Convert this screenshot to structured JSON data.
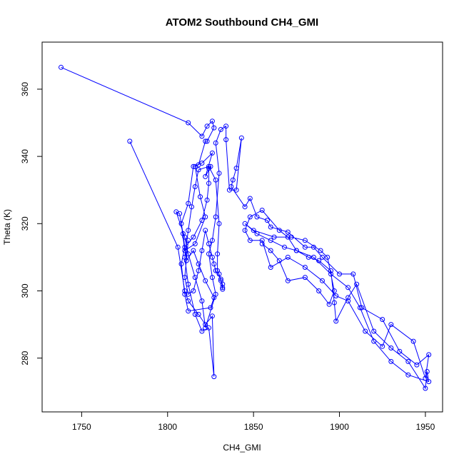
{
  "chart_data": {
    "type": "line",
    "title": "ATOM2 Southbound CH4_GMI",
    "xlabel": "CH4_GMI",
    "ylabel": "Theta (K)",
    "xlim": [
      1727,
      1960
    ],
    "ylim": [
      264,
      374
    ],
    "xticks": [
      1750,
      1800,
      1850,
      1900,
      1950
    ],
    "yticks": [
      280,
      300,
      320,
      340,
      360
    ],
    "grid": false,
    "legend": "none",
    "markers": "open-circle",
    "color": "#0000ff",
    "series": [
      {
        "points": [
          [
            1738,
            366.5
          ],
          [
            1812,
            350
          ],
          [
            1820,
            346
          ],
          [
            1823,
            349
          ],
          [
            1826,
            350.5
          ],
          [
            1827,
            348.5
          ],
          [
            1823,
            344.5
          ],
          [
            1822,
            344.5
          ],
          [
            1818,
            337.5
          ],
          [
            1816,
            337
          ],
          [
            1819,
            328
          ],
          [
            1822,
            322
          ],
          [
            1816,
            314
          ],
          [
            1810,
            312
          ],
          [
            1808,
            320
          ],
          [
            1812,
            326
          ],
          [
            1815,
            337
          ],
          [
            1820,
            338
          ],
          [
            1826,
            341
          ],
          [
            1822,
            334
          ],
          [
            1825,
            337
          ],
          [
            1824,
            336.5
          ],
          [
            1824,
            332
          ],
          [
            1823,
            327
          ],
          [
            1820,
            321
          ],
          [
            1815,
            316
          ],
          [
            1810,
            313
          ],
          [
            1808,
            308
          ],
          [
            1810,
            299
          ],
          [
            1812,
            294
          ],
          [
            1825,
            295
          ],
          [
            1827,
            298
          ],
          [
            1822,
            303
          ],
          [
            1818,
            308
          ],
          [
            1815,
            312
          ],
          [
            1811,
            309
          ],
          [
            1809,
            317
          ],
          [
            1807,
            323
          ],
          [
            1805,
            323.5
          ],
          [
            1810,
            316
          ],
          [
            1812,
            311
          ],
          [
            1816,
            304
          ],
          [
            1820,
            297
          ],
          [
            1822,
            289
          ],
          [
            1828,
            299
          ],
          [
            1826,
            304
          ],
          [
            1824,
            311
          ],
          [
            1826,
            315
          ],
          [
            1828,
            322
          ],
          [
            1830,
            335
          ],
          [
            1828,
            344
          ],
          [
            1831,
            348
          ],
          [
            1834,
            349
          ],
          [
            1834,
            345
          ],
          [
            1836,
            330
          ],
          [
            1840,
            330
          ],
          [
            1843,
            345.5
          ],
          [
            1840,
            336.5
          ],
          [
            1838,
            333
          ],
          [
            1837,
            331
          ],
          [
            1845,
            325
          ],
          [
            1848,
            327.5
          ],
          [
            1852,
            322
          ],
          [
            1858,
            321
          ],
          [
            1860,
            319
          ],
          [
            1870,
            317.5
          ],
          [
            1880,
            313
          ],
          [
            1885,
            313
          ],
          [
            1890,
            310
          ],
          [
            1900,
            305
          ],
          [
            1908,
            305
          ],
          [
            1913,
            295
          ],
          [
            1925,
            291.5
          ],
          [
            1935,
            282
          ],
          [
            1945,
            278
          ],
          [
            1952,
            281
          ],
          [
            1950,
            274
          ],
          [
            1943,
            285
          ],
          [
            1930,
            290
          ],
          [
            1925,
            283.5
          ],
          [
            1915,
            288
          ],
          [
            1905,
            297
          ],
          [
            1898,
            298.5
          ],
          [
            1890,
            303
          ],
          [
            1880,
            307
          ],
          [
            1870,
            310
          ],
          [
            1860,
            307
          ],
          [
            1855,
            315
          ],
          [
            1848,
            315
          ],
          [
            1845,
            318
          ],
          [
            1848,
            322
          ],
          [
            1855,
            324
          ],
          [
            1865,
            318
          ],
          [
            1870,
            316
          ],
          [
            1875,
            312
          ],
          [
            1882,
            310
          ],
          [
            1888,
            309
          ],
          [
            1895,
            306
          ],
          [
            1897,
            296.5
          ],
          [
            1898,
            291
          ],
          [
            1905,
            298
          ],
          [
            1910,
            302
          ],
          [
            1920,
            288
          ],
          [
            1930,
            283
          ],
          [
            1940,
            279
          ],
          [
            1950,
            271
          ],
          [
            1951,
            276
          ],
          [
            1952,
            273
          ],
          [
            1940,
            275
          ],
          [
            1930,
            279
          ],
          [
            1920,
            285
          ],
          [
            1912,
            295
          ],
          [
            1905,
            301
          ],
          [
            1895,
            305
          ],
          [
            1885,
            310
          ],
          [
            1875,
            312
          ],
          [
            1868,
            313
          ],
          [
            1860,
            315
          ],
          [
            1852,
            317
          ],
          [
            1845,
            320
          ],
          [
            1850,
            318
          ],
          [
            1862,
            316
          ],
          [
            1872,
            316
          ],
          [
            1880,
            315
          ],
          [
            1889,
            312
          ],
          [
            1893,
            310
          ],
          [
            1897,
            300
          ],
          [
            1894,
            296
          ],
          [
            1888,
            300
          ],
          [
            1880,
            304
          ],
          [
            1870,
            303
          ],
          [
            1865,
            309
          ],
          [
            1860,
            312
          ],
          [
            1855,
            314
          ]
        ]
      },
      {
        "points": [
          [
            1778,
            344.5
          ],
          [
            1806,
            313
          ],
          [
            1810,
            300
          ],
          [
            1812,
            297
          ],
          [
            1818,
            293
          ],
          [
            1822,
            290
          ],
          [
            1826,
            292.5
          ],
          [
            1827,
            274.5
          ],
          [
            1824,
            289
          ],
          [
            1820,
            288
          ],
          [
            1816,
            293
          ],
          [
            1812,
            302
          ],
          [
            1810,
            310
          ],
          [
            1812,
            318
          ],
          [
            1814,
            325
          ],
          [
            1816,
            331
          ],
          [
            1818,
            336
          ],
          [
            1824,
            337
          ],
          [
            1828,
            333
          ],
          [
            1830,
            320
          ],
          [
            1829,
            311
          ],
          [
            1829,
            306
          ],
          [
            1830,
            305
          ],
          [
            1831,
            303
          ],
          [
            1832,
            302
          ],
          [
            1832,
            301
          ],
          [
            1832,
            300.5
          ],
          [
            1831,
            303.5
          ],
          [
            1828,
            306
          ],
          [
            1827,
            308
          ],
          [
            1826,
            310
          ],
          [
            1824,
            314
          ],
          [
            1822,
            318
          ],
          [
            1820,
            312
          ],
          [
            1818,
            306
          ],
          [
            1815,
            300
          ],
          [
            1812,
            299
          ],
          [
            1810,
            304
          ],
          [
            1812,
            315
          ]
        ]
      }
    ]
  }
}
